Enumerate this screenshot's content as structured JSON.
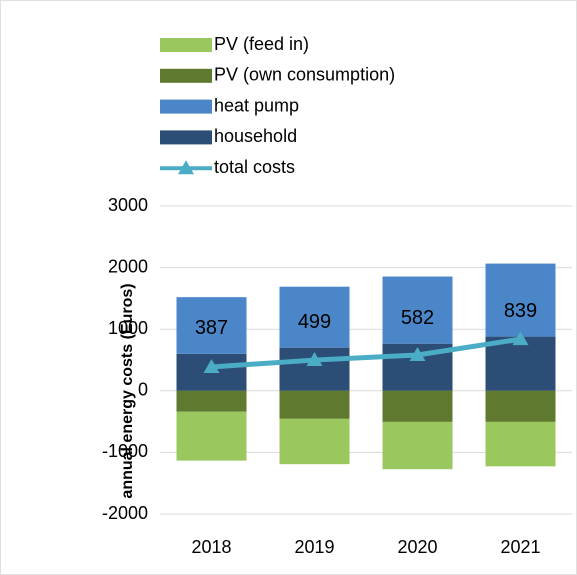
{
  "chart_data": {
    "type": "stacked_bar_line",
    "y_label": "annual energy costs (Euros)",
    "categories": [
      "2018",
      "2019",
      "2020",
      "2021"
    ],
    "series": [
      {
        "name": "PV (feed in)",
        "color": "#9bc85e",
        "values": [
          -793,
          -736,
          -768,
          -721
        ]
      },
      {
        "name": "PV (own consumption)",
        "color": "#5f7a2e",
        "values": [
          -340,
          -455,
          -505,
          -505
        ]
      },
      {
        "name": "heat pump",
        "color": "#4a86c8",
        "values": [
          920,
          990,
          1090,
          1185
        ]
      },
      {
        "name": "household",
        "color": "#2c4d75",
        "values": [
          600,
          700,
          765,
          880
        ]
      },
      {
        "name": "total costs",
        "color": "#4bacc6",
        "type": "line",
        "values": [
          387,
          499,
          582,
          839
        ]
      }
    ],
    "ylim": [
      -2000,
      3000
    ],
    "yticks": [
      -2000,
      -1000,
      0,
      1000,
      2000,
      3000
    ],
    "grid": true
  }
}
